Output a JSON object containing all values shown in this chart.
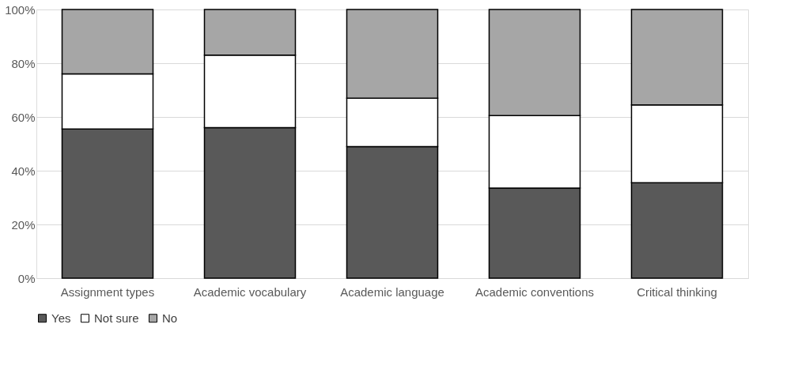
{
  "chart_data": {
    "type": "bar",
    "stacked": true,
    "categories": [
      "Assignment types",
      "Academic vocabulary",
      "Academic language",
      "Academic conventions",
      "Critical thinking"
    ],
    "series": [
      {
        "name": "Yes",
        "color": "#595959",
        "values": [
          55.5,
          56,
          49,
          33.5,
          35.5
        ]
      },
      {
        "name": "Not sure",
        "color": "#ffffff",
        "values": [
          20.5,
          27,
          18,
          27,
          29
        ]
      },
      {
        "name": "No",
        "color": "#a6a6a6",
        "values": [
          24,
          17,
          33,
          39.5,
          35.5
        ]
      }
    ],
    "ylim": [
      0,
      100
    ],
    "yticks": [
      {
        "value": 0,
        "label": "0%"
      },
      {
        "value": 20,
        "label": "20%"
      },
      {
        "value": 40,
        "label": "40%"
      },
      {
        "value": 60,
        "label": "60%"
      },
      {
        "value": 80,
        "label": "80%"
      },
      {
        "value": 100,
        "label": "100%"
      }
    ],
    "grid": "y",
    "legend": "bottom"
  }
}
